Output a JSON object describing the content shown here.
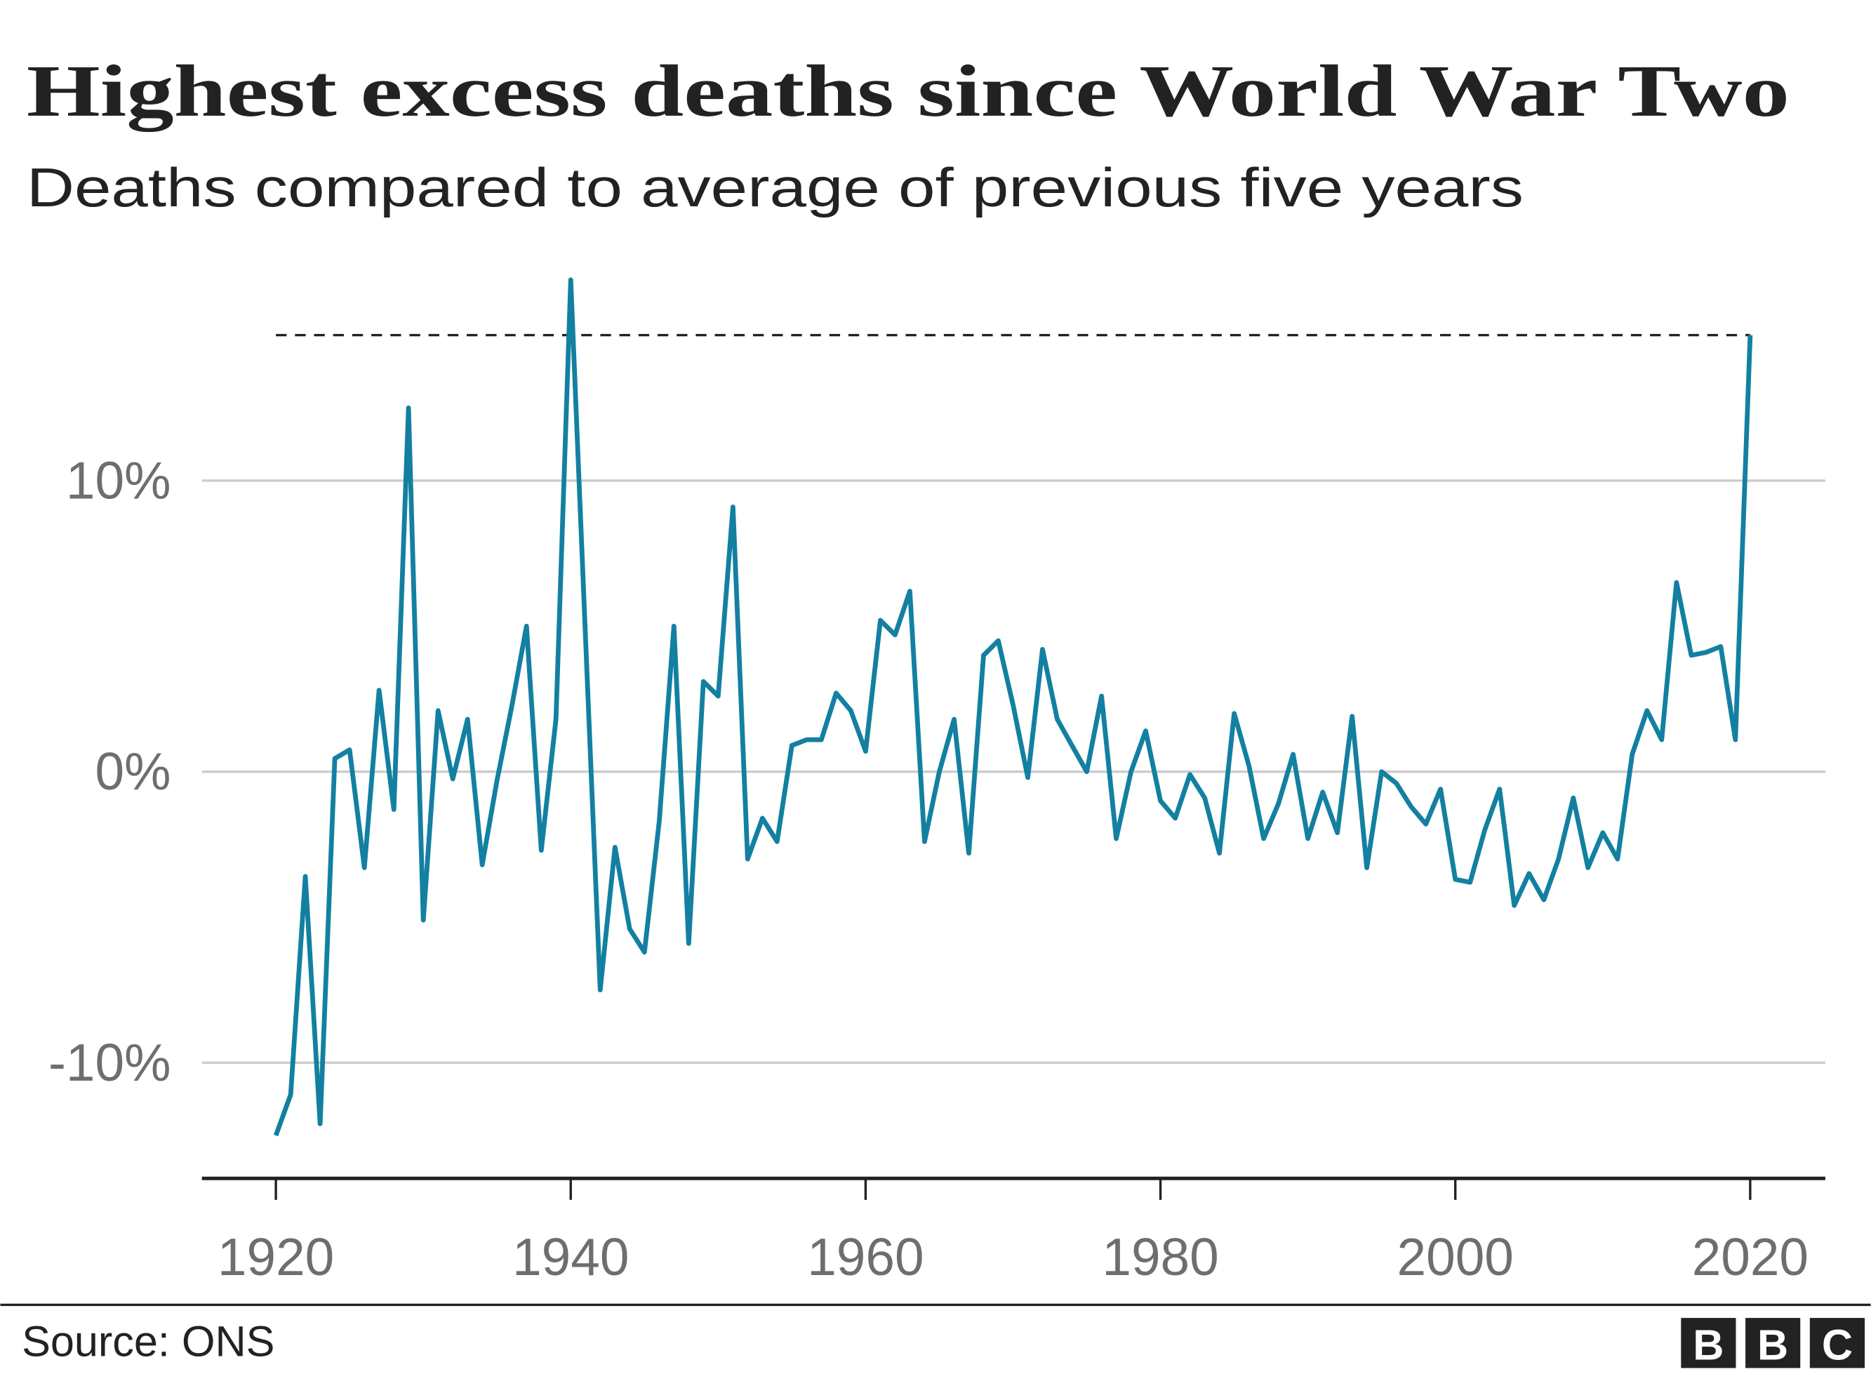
{
  "chart_data": {
    "type": "line",
    "title": "Highest excess deaths since World War Two",
    "subtitle": "Deaths compared to average of previous five years",
    "xlabel": "",
    "ylabel": "",
    "xlim": [
      1915,
      2025
    ],
    "ylim": [
      -14,
      17
    ],
    "x_ticks": [
      1920,
      1940,
      1960,
      1980,
      2000,
      2020
    ],
    "x_tick_labels": [
      "1920",
      "1940",
      "1960",
      "1980",
      "2000",
      "2020"
    ],
    "y_ticks": [
      -10,
      0,
      10
    ],
    "y_tick_labels": [
      "-10%",
      "0%",
      "10%"
    ],
    "grid": "horizontal",
    "reference_line": {
      "value": 15.0,
      "style": "dashed"
    },
    "series_color": "#1380A1",
    "x": [
      1920,
      1921,
      1922,
      1923,
      1924,
      1925,
      1926,
      1927,
      1928,
      1929,
      1930,
      1931,
      1932,
      1933,
      1934,
      1935,
      1936,
      1937,
      1938,
      1939,
      1940,
      1941,
      1942,
      1943,
      1944,
      1945,
      1946,
      1947,
      1948,
      1949,
      1950,
      1951,
      1952,
      1953,
      1954,
      1955,
      1956,
      1957,
      1958,
      1959,
      1960,
      1961,
      1962,
      1963,
      1964,
      1965,
      1966,
      1967,
      1968,
      1969,
      1970,
      1971,
      1972,
      1973,
      1974,
      1975,
      1976,
      1977,
      1978,
      1979,
      1980,
      1981,
      1982,
      1983,
      1984,
      1985,
      1986,
      1987,
      1988,
      1989,
      1990,
      1991,
      1992,
      1993,
      1994,
      1995,
      1996,
      1997,
      1998,
      1999,
      2000,
      2001,
      2002,
      2003,
      2004,
      2005,
      2006,
      2007,
      2008,
      2009,
      2010,
      2011,
      2012,
      2013,
      2014,
      2015,
      2016,
      2017,
      2018,
      2019,
      2020
    ],
    "values": [
      -12.5,
      -11.1,
      -3.6,
      -12.1,
      0.45,
      0.75,
      -3.3,
      2.8,
      -1.3,
      12.5,
      -5.1,
      2.1,
      -0.25,
      1.8,
      -3.2,
      -0.3,
      2.25,
      5.0,
      -2.7,
      1.8,
      16.9,
      4.6,
      -7.5,
      -2.6,
      -5.4,
      -6.2,
      -1.7,
      5.0,
      -5.9,
      3.1,
      2.6,
      9.1,
      -3.0,
      -1.6,
      -2.4,
      0.9,
      1.1,
      1.1,
      2.7,
      2.1,
      0.7,
      5.2,
      4.7,
      6.2,
      -2.4,
      0.0,
      1.8,
      -2.8,
      4.0,
      4.5,
      2.3,
      -0.2,
      4.2,
      1.8,
      0.9,
      0.0,
      2.6,
      -2.3,
      0.0,
      1.4,
      -1.0,
      -1.6,
      -0.1,
      -0.9,
      -2.8,
      2.0,
      0.2,
      -2.3,
      -1.1,
      0.6,
      -2.3,
      -0.7,
      -2.1,
      1.9,
      -3.3,
      0.0,
      -0.4,
      -1.2,
      -1.8,
      -0.6,
      -3.7,
      -3.8,
      -2.0,
      -0.6,
      -4.6,
      -3.5,
      -4.4,
      -3.0,
      -0.9,
      -3.3,
      -2.1,
      -3.0,
      0.6,
      2.1,
      1.1,
      6.5,
      4.0,
      4.1,
      4.3,
      1.1,
      15.0
    ]
  },
  "footer": {
    "source": "Source: ONS",
    "logo_letters": [
      "B",
      "B",
      "C"
    ]
  }
}
